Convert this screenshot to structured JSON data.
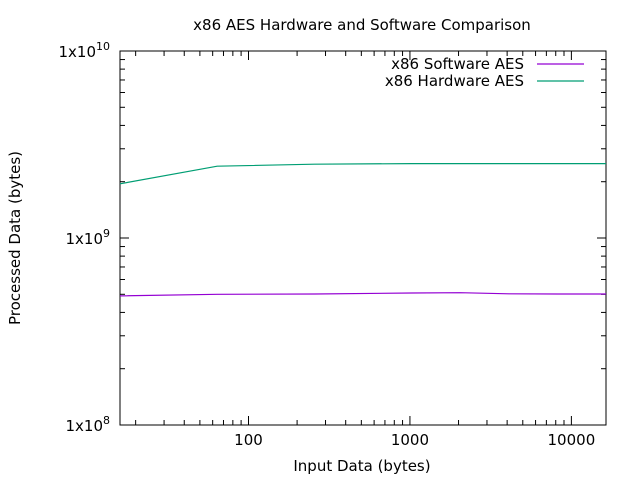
{
  "chart_data": {
    "type": "line",
    "title": "x86 AES Hardware and Software Comparison",
    "xlabel": "Input Data (bytes)",
    "ylabel": "Processed Data (bytes)",
    "xscale": "log",
    "yscale": "log",
    "xlim": [
      16,
      16384
    ],
    "ylim": [
      100000000,
      10000000000
    ],
    "grid": false,
    "legend_position": "top-right",
    "x_ticks": [
      {
        "value": 100,
        "label": "100"
      },
      {
        "value": 1000,
        "label": "1000"
      },
      {
        "value": 10000,
        "label": "10000"
      }
    ],
    "y_ticks": [
      {
        "value": 100000000,
        "base": "1x10",
        "exp": "8"
      },
      {
        "value": 1000000000,
        "base": "1x10",
        "exp": "9"
      },
      {
        "value": 10000000000,
        "base": "1x10",
        "exp": "10"
      }
    ],
    "series": [
      {
        "name": "x86 Software AES",
        "color": "#9400d3",
        "points": [
          [
            16,
            490000000
          ],
          [
            64,
            500000000
          ],
          [
            256,
            502000000
          ],
          [
            1024,
            508000000
          ],
          [
            2048,
            510000000
          ],
          [
            4096,
            503000000
          ],
          [
            8192,
            502000000
          ],
          [
            16384,
            502000000
          ]
        ]
      },
      {
        "name": "x86 Hardware AES",
        "color": "#009e73",
        "points": [
          [
            16,
            1950000000
          ],
          [
            64,
            2420000000
          ],
          [
            256,
            2480000000
          ],
          [
            1024,
            2500000000
          ],
          [
            4096,
            2500000000
          ],
          [
            8192,
            2500000000
          ],
          [
            16384,
            2500000000
          ]
        ]
      }
    ]
  }
}
